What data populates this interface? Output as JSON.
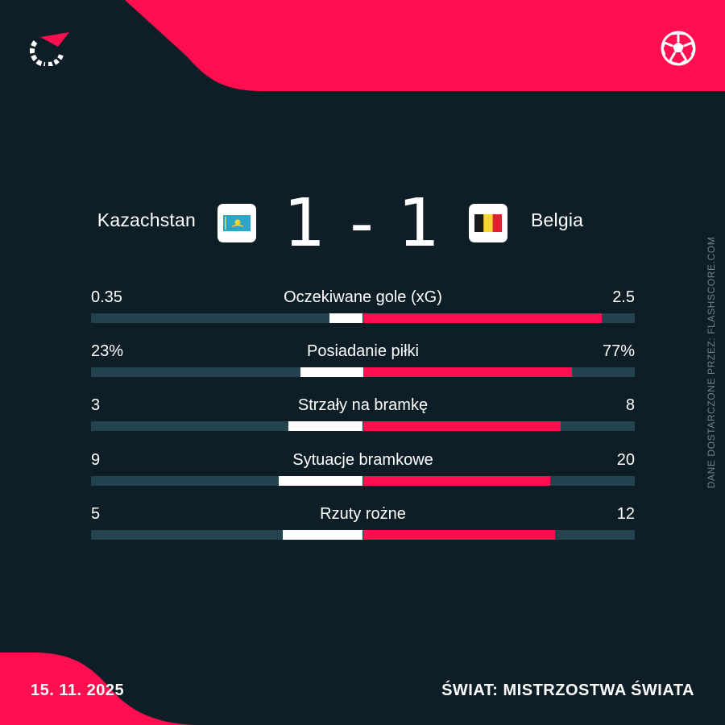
{
  "header": {
    "logo_icon": "flashscore-logo-icon",
    "sport_icon": "football-ball-icon"
  },
  "match": {
    "home_team": "Kazachstan",
    "away_team": "Belgia",
    "home_score": "1",
    "separator": "-",
    "away_score": "1",
    "home_flag": "kazakhstan-flag-icon",
    "away_flag": "belgium-flag-icon"
  },
  "stats": [
    {
      "label": "Oczekiwane gole (xG)",
      "home": "0.35",
      "away": "2.5",
      "home_value": 0.35,
      "away_value": 2.5
    },
    {
      "label": "Posiadanie piłki",
      "home": "23%",
      "away": "77%",
      "home_value": 23,
      "away_value": 77
    },
    {
      "label": "Strzały na bramkę",
      "home": "3",
      "away": "8",
      "home_value": 3,
      "away_value": 8
    },
    {
      "label": "Sytuacje bramkowe",
      "home": "9",
      "away": "20",
      "home_value": 9,
      "away_value": 20
    },
    {
      "label": "Rzuty rożne",
      "home": "5",
      "away": "12",
      "home_value": 5,
      "away_value": 12
    }
  ],
  "footer": {
    "date": "15. 11. 2025",
    "competition": "ŚWIAT: MISTRZOSTWA ŚWIATA"
  },
  "credit": "DANE DOSTARCZONE PRZEZ: FLASHSCORE.COM",
  "colors": {
    "background": "#0e1e26",
    "accent": "#ff0f4f",
    "track": "#23444f",
    "home_bar": "#ffffff",
    "away_bar": "#ff0f4f"
  }
}
